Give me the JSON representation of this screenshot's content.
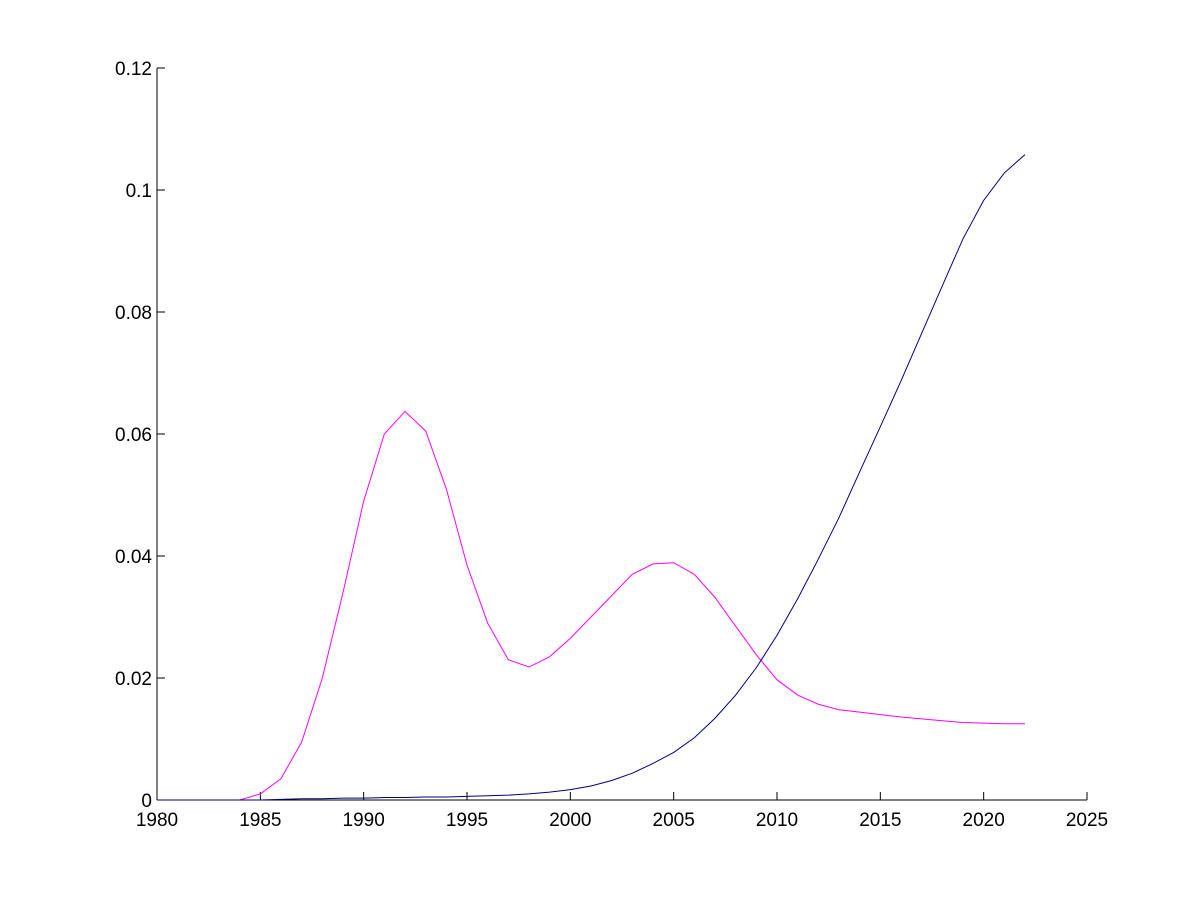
{
  "chart_data": {
    "type": "line",
    "title": "",
    "xlabel": "",
    "ylabel": "",
    "xlim": [
      1980,
      2025
    ],
    "ylim": [
      0,
      0.12
    ],
    "x_ticks": [
      1980,
      1985,
      1990,
      1995,
      2000,
      2005,
      2010,
      2015,
      2020,
      2025
    ],
    "x_tick_labels": [
      "1980",
      "1985",
      "1990",
      "1995",
      "2000",
      "2005",
      "2010",
      "2015",
      "2020",
      "2025"
    ],
    "y_ticks": [
      0,
      0.02,
      0.04,
      0.06,
      0.08,
      0.1,
      0.12
    ],
    "y_tick_labels": [
      "0",
      "0.02",
      "0.04",
      "0.06",
      "0.08",
      "0.1",
      "0.12"
    ],
    "grid": false,
    "legend": "none",
    "series": [
      {
        "color": "#ff00ff",
        "x": [
          1980,
          1981,
          1982,
          1983,
          1984,
          1985,
          1986,
          1987,
          1988,
          1989,
          1990,
          1991,
          1992,
          1993,
          1994,
          1995,
          1996,
          1997,
          1998,
          1999,
          2000,
          2001,
          2002,
          2003,
          2004,
          2005,
          2006,
          2007,
          2008,
          2009,
          2010,
          2011,
          2012,
          2013,
          2014,
          2015,
          2016,
          2017,
          2018,
          2019,
          2020,
          2021,
          2022
        ],
        "values": [
          0,
          0,
          0,
          0,
          0,
          0.001,
          0.0035,
          0.0095,
          0.02,
          0.034,
          0.049,
          0.06,
          0.0637,
          0.0605,
          0.051,
          0.0385,
          0.029,
          0.023,
          0.0218,
          0.0235,
          0.0265,
          0.03,
          0.0335,
          0.037,
          0.0387,
          0.0389,
          0.037,
          0.0332,
          0.0285,
          0.0238,
          0.0197,
          0.0172,
          0.0157,
          0.0148,
          0.0144,
          0.014,
          0.0136,
          0.0133,
          0.013,
          0.0127,
          0.0126,
          0.0125,
          0.0125
        ]
      },
      {
        "color": "#000080",
        "x": [
          1980,
          1981,
          1982,
          1983,
          1984,
          1985,
          1986,
          1987,
          1988,
          1989,
          1990,
          1991,
          1992,
          1993,
          1994,
          1995,
          1996,
          1997,
          1998,
          1999,
          2000,
          2001,
          2002,
          2003,
          2004,
          2005,
          2006,
          2007,
          2008,
          2009,
          2010,
          2011,
          2012,
          2013,
          2014,
          2015,
          2016,
          2017,
          2018,
          2019,
          2020,
          2021,
          2022
        ],
        "values": [
          0,
          0,
          0,
          0,
          0,
          0,
          0.0001,
          0.0002,
          0.0002,
          0.0003,
          0.0003,
          0.0004,
          0.0004,
          0.0005,
          0.0005,
          0.0006,
          0.0007,
          0.0008,
          0.001,
          0.0013,
          0.0017,
          0.0023,
          0.0032,
          0.0044,
          0.006,
          0.0078,
          0.0102,
          0.0134,
          0.0172,
          0.0217,
          0.027,
          0.033,
          0.0395,
          0.0463,
          0.0538,
          0.0612,
          0.0687,
          0.0765,
          0.0843,
          0.092,
          0.0983,
          0.1028,
          0.1058
        ]
      }
    ]
  }
}
